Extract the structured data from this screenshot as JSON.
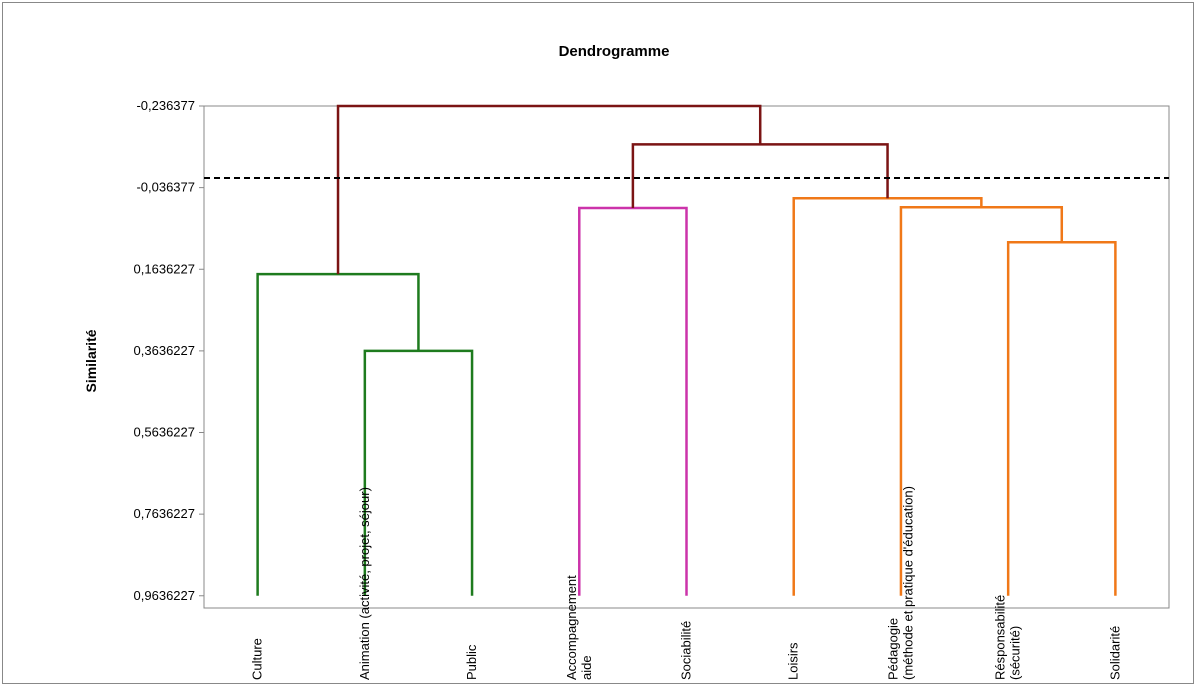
{
  "chart_data": {
    "type": "dendrogram",
    "title": "Dendrogramme",
    "ylabel": "Similarité",
    "y_ticks": [
      "-0,236377",
      "-0,036377",
      "0,1636227",
      "0,3636227",
      "0,5636227",
      "0,7636227",
      "0,9636227"
    ],
    "y_tick_values": [
      -0.236377,
      -0.036377,
      0.1636227,
      0.3636227,
      0.5636227,
      0.7636227,
      0.9636227
    ],
    "ylim": [
      -0.236377,
      0.9936
    ],
    "y_inverted": true,
    "cut_line": -0.06,
    "leaves": [
      "Culture",
      "Animation (activité, projet, séjour)",
      "Public",
      "Accompagnement\naide",
      "Sociabilité",
      "Loisirs",
      "Pédagogie\n(méthode et pratique d'éducation)",
      "Résponsabilité\n(sécurité)",
      "Solidarité"
    ],
    "leaf_baseline": 0.9636227,
    "merges": [
      {
        "left": "leaf:1",
        "right": "leaf:2",
        "height": 0.3636227,
        "color": "#1e7b1e"
      },
      {
        "left": "leaf:0",
        "right": "merge:0",
        "height": 0.1756,
        "color": "#1e7b1e"
      },
      {
        "left": "leaf:3",
        "right": "leaf:4",
        "height": 0.0136,
        "color": "#cc33aa"
      },
      {
        "left": "leaf:7",
        "right": "leaf:8",
        "height": 0.0976,
        "color": "#f07818"
      },
      {
        "left": "leaf:6",
        "right": "merge:3",
        "height": 0.0116,
        "color": "#f07818"
      },
      {
        "left": "leaf:5",
        "right": "merge:4",
        "height": -0.0104,
        "color": "#f07818"
      },
      {
        "left": "merge:2",
        "right": "merge:5",
        "height": -0.1424,
        "color": "#7b1414"
      },
      {
        "left": "merge:1",
        "right": "merge:6",
        "height": -0.236377,
        "color": "#7b1414"
      }
    ]
  }
}
